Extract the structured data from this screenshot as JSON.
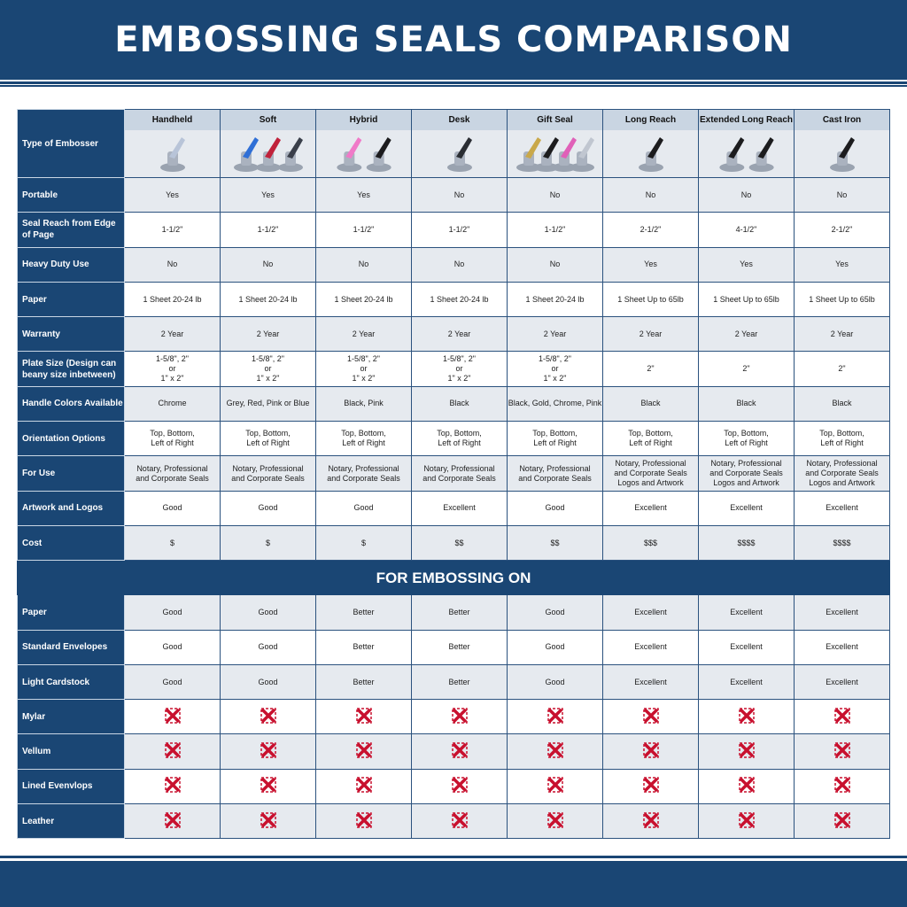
{
  "title": "EMBOSSING SEALS COMPARISON",
  "corner_label": "Type of Embosser",
  "columns": [
    "Handheld",
    "Soft",
    "Hybrid",
    "Desk",
    "Gift Seal",
    "Long Reach",
    "Extended Long Reach",
    "Cast Iron"
  ],
  "product_images": [
    {
      "name": "handheld",
      "colors": [
        "#b8c4d8"
      ]
    },
    {
      "name": "soft",
      "colors": [
        "#2f6fd6",
        "#c0213a",
        "#3a3f4a"
      ]
    },
    {
      "name": "hybrid",
      "colors": [
        "#f07ac8",
        "#1c1c1e"
      ]
    },
    {
      "name": "desk",
      "colors": [
        "#2a2d33"
      ]
    },
    {
      "name": "gift-seal",
      "colors": [
        "#c9a84a",
        "#1c1c1e",
        "#e060b8",
        "#c0c6d0"
      ]
    },
    {
      "name": "long-reach",
      "colors": [
        "#1c1c1e"
      ]
    },
    {
      "name": "extended-long-reach",
      "colors": [
        "#1c1c1e",
        "#1c1c1e"
      ]
    },
    {
      "name": "cast-iron",
      "colors": [
        "#1c1c1e"
      ]
    }
  ],
  "rows": [
    {
      "label": "Portable",
      "values": [
        "Yes",
        "Yes",
        "Yes",
        "No",
        "No",
        "No",
        "No",
        "No"
      ]
    },
    {
      "label": "Seal Reach from Edge of Page",
      "values": [
        "1-1/2\"",
        "1-1/2\"",
        "1-1/2\"",
        "1-1/2\"",
        "1-1/2\"",
        "2-1/2\"",
        "4-1/2\"",
        "2-1/2\""
      ]
    },
    {
      "label": "Heavy Duty Use",
      "values": [
        "No",
        "No",
        "No",
        "No",
        "No",
        "Yes",
        "Yes",
        "Yes"
      ]
    },
    {
      "label": "Paper",
      "values": [
        "1 Sheet 20-24 lb",
        "1 Sheet 20-24 lb",
        "1 Sheet 20-24 lb",
        "1 Sheet 20-24 lb",
        "1 Sheet 20-24 lb",
        "1 Sheet Up to 65lb",
        "1 Sheet Up to 65lb",
        "1 Sheet Up to 65lb"
      ]
    },
    {
      "label": "Warranty",
      "values": [
        "2 Year",
        "2 Year",
        "2 Year",
        "2 Year",
        "2 Year",
        "2 Year",
        "2 Year",
        "2 Year"
      ]
    },
    {
      "label": "Plate Size (Design can beany size inbetween)",
      "values": [
        "1-5/8\", 2\"\nor\n1\" x 2\"",
        "1-5/8\", 2\"\nor\n1\" x 2\"",
        "1-5/8\", 2\"\nor\n1\" x 2\"",
        "1-5/8\", 2\"\nor\n1\" x 2\"",
        "1-5/8\", 2\"\nor\n1\" x 2\"",
        "2\"",
        "2\"",
        "2\""
      ]
    },
    {
      "label": "Handle Colors Available",
      "values": [
        "Chrome",
        "Grey, Red, Pink or Blue",
        "Black, Pink",
        "Black",
        "Black, Gold, Chrome, Pink",
        "Black",
        "Black",
        "Black"
      ]
    },
    {
      "label": "Orientation Options",
      "values": [
        "Top, Bottom,\nLeft of Right",
        "Top, Bottom,\nLeft of Right",
        "Top, Bottom,\nLeft of Right",
        "Top, Bottom,\nLeft of Right",
        "Top, Bottom,\nLeft of Right",
        "Top, Bottom,\nLeft of Right",
        "Top, Bottom,\nLeft of Right",
        "Top, Bottom,\nLeft of Right"
      ]
    },
    {
      "label": "For Use",
      "values": [
        "Notary, Professional\nand Corporate Seals",
        "Notary, Professional\nand Corporate Seals",
        "Notary, Professional\nand Corporate Seals",
        "Notary, Professional\nand Corporate Seals",
        "Notary, Professional\nand Corporate Seals",
        "Notary, Professional\nand Corporate Seals\nLogos and Artwork",
        "Notary, Professional\nand Corporate Seals\nLogos and Artwork",
        "Notary, Professional\nand Corporate Seals\nLogos and Artwork"
      ]
    },
    {
      "label": "Artwork and Logos",
      "values": [
        "Good",
        "Good",
        "Good",
        "Excellent",
        "Good",
        "Excellent",
        "Excellent",
        "Excellent"
      ]
    },
    {
      "label": "Cost",
      "values": [
        "$",
        "$",
        "$",
        "$$",
        "$$",
        "$$$",
        "$$$$",
        "$$$$"
      ]
    }
  ],
  "section_banner": "FOR EMBOSSING ON",
  "embossing_rows": [
    {
      "label": "Paper",
      "values": [
        "Good",
        "Good",
        "Better",
        "Better",
        "Good",
        "Excellent",
        "Excellent",
        "Excellent"
      ]
    },
    {
      "label": "Standard Envelopes",
      "values": [
        "Good",
        "Good",
        "Better",
        "Better",
        "Good",
        "Excellent",
        "Excellent",
        "Excellent"
      ]
    },
    {
      "label": "Light Cardstock",
      "values": [
        "Good",
        "Good",
        "Better",
        "Better",
        "Good",
        "Excellent",
        "Excellent",
        "Excellent"
      ]
    },
    {
      "label": "Mylar",
      "values": [
        "x-icon",
        "x-icon",
        "x-icon",
        "x-icon",
        "x-icon",
        "x-icon",
        "x-icon",
        "x-icon"
      ]
    },
    {
      "label": "Vellum",
      "values": [
        "x-icon",
        "x-icon",
        "x-icon",
        "x-icon",
        "x-icon",
        "x-icon",
        "x-icon",
        "x-icon"
      ]
    },
    {
      "label": "Lined Evenvlops",
      "values": [
        "x-icon",
        "x-icon",
        "x-icon",
        "x-icon",
        "x-icon",
        "x-icon",
        "x-icon",
        "x-icon"
      ]
    },
    {
      "label": "Leather",
      "values": [
        "x-icon",
        "x-icon",
        "x-icon",
        "x-icon",
        "x-icon",
        "x-icon",
        "x-icon",
        "x-icon"
      ]
    }
  ],
  "colors": {
    "brand": "#1a4674",
    "x_icon": "#c8102e",
    "row_alt": "#e6eaef",
    "header_cell": "#c9d5e2"
  }
}
